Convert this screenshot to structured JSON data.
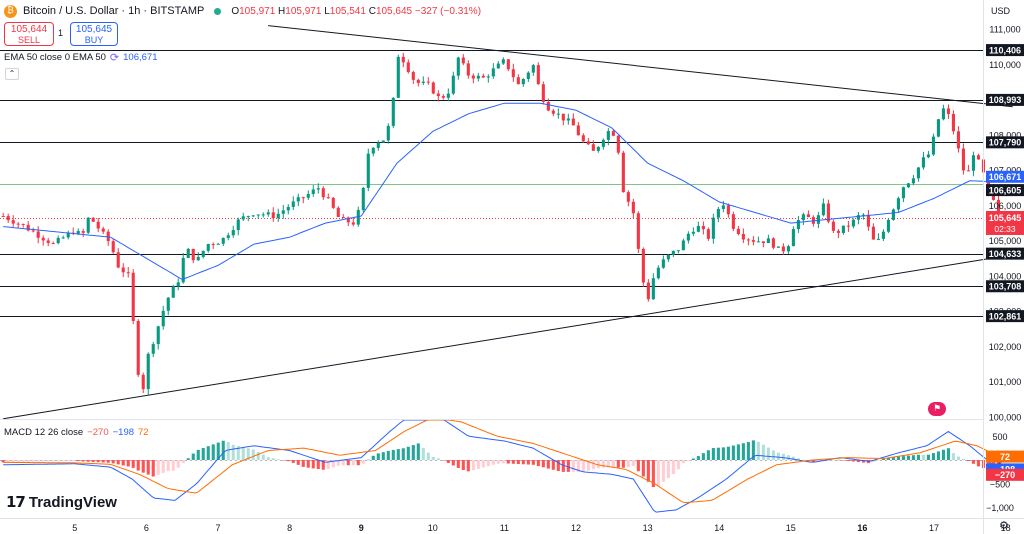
{
  "header": {
    "symbol_glyph": "₿",
    "title": "Bitcoin / U.S. Dollar · 1h · BITSTAMP",
    "ohlc": {
      "o": "105,971",
      "h": "105,971",
      "l": "105,541",
      "c": "105,645",
      "change": "−327 (−0.31%)"
    }
  },
  "trade": {
    "sell_price": "105,644",
    "sell_label": "SELL",
    "buy_price": "105,645",
    "buy_label": "BUY",
    "spread": "1"
  },
  "ema_legend": {
    "label": "EMA 50 close 0 EMA 50",
    "value": "106,671"
  },
  "collapse_icon": "⌃",
  "macd_legend": {
    "label": "MACD 12 26 close",
    "hist": "−270",
    "macd": "−198",
    "signal": "72"
  },
  "logo": {
    "mark": "17",
    "text": "TradingView"
  },
  "axis": {
    "currency": "USD"
  },
  "colors": {
    "up": "#089981",
    "down": "#f23645",
    "ema": "#2962ff",
    "macd": "#2962ff",
    "signal": "#ff6d00"
  },
  "chart_data": {
    "type": "candlestick",
    "price_ticks": [
      111000,
      110000,
      109000,
      108000,
      107000,
      106000,
      105000,
      104000,
      103000,
      102000,
      101000,
      100000
    ],
    "price_tick_labels": [
      "111,000",
      "110,000",
      "109,000",
      "108,000",
      "107,000",
      "106,000",
      "105,000",
      "104,000",
      "103,000",
      "102,000",
      "101,000",
      "100,000"
    ],
    "macd_ticks": [
      500,
      0,
      -500,
      -1000
    ],
    "macd_tick_labels": [
      "500",
      "0",
      "−500",
      "−1,000"
    ],
    "x_labels": [
      {
        "label": "5",
        "t": 0.5
      },
      {
        "label": "6",
        "t": 1.5
      },
      {
        "label": "7",
        "t": 2.5
      },
      {
        "label": "8",
        "t": 3.5
      },
      {
        "label": "9",
        "t": 4.5,
        "bold": true
      },
      {
        "label": "10",
        "t": 5.5
      },
      {
        "label": "11",
        "t": 6.5
      },
      {
        "label": "12",
        "t": 7.5
      },
      {
        "label": "13",
        "t": 8.5
      },
      {
        "label": "14",
        "t": 9.5
      },
      {
        "label": "15",
        "t": 10.5
      },
      {
        "label": "16",
        "t": 11.5,
        "bold": true
      },
      {
        "label": "17",
        "t": 12.5
      },
      {
        "label": "18",
        "t": 13.5
      }
    ],
    "levels": [
      {
        "value": 110406,
        "label": "110,406",
        "color": "#131722"
      },
      {
        "value": 108993,
        "label": "108,993",
        "color": "#131722"
      },
      {
        "value": 107790,
        "label": "107,790",
        "color": "#131722"
      },
      {
        "value": 106605,
        "label": "106,605",
        "color": "#131722",
        "line_color": "#81c784"
      },
      {
        "value": 104633,
        "label": "104,633",
        "color": "#131722"
      },
      {
        "value": 103708,
        "label": "103,708",
        "color": "#131722"
      },
      {
        "value": 102861,
        "label": "102,861",
        "color": "#131722"
      }
    ],
    "ema_tag": {
      "value": 106671,
      "label": "106,671",
      "color": "#2962ff"
    },
    "last_price": {
      "value": 105645,
      "label": "105,645",
      "countdown": "02:33",
      "color": "#f23645"
    },
    "macd_tags": [
      {
        "value": 72,
        "label": "72",
        "color": "#ff6d00"
      },
      {
        "value": -198,
        "label": "−198",
        "color": "#2962ff"
      },
      {
        "value": -270,
        "label": "−270",
        "color": "#f23645"
      }
    ],
    "trendlines": [
      {
        "t1": 3.2,
        "p1": 111100,
        "t2": 13.6,
        "p2": 108800
      },
      {
        "t1": -0.5,
        "p1": 99950,
        "t2": 13.6,
        "p2": 104600
      }
    ],
    "anchors": [
      [
        -0.5,
        105700
      ],
      [
        -0.2,
        105400
      ],
      [
        0.2,
        104900
      ],
      [
        0.5,
        105300
      ],
      [
        0.6,
        105100
      ],
      [
        0.7,
        105700
      ],
      [
        1.0,
        104900
      ],
      [
        1.1,
        104300
      ],
      [
        1.25,
        104000
      ],
      [
        1.35,
        102000
      ],
      [
        1.43,
        100400
      ],
      [
        1.5,
        101600
      ],
      [
        1.62,
        102300
      ],
      [
        1.78,
        103300
      ],
      [
        1.95,
        103900
      ],
      [
        2.05,
        104800
      ],
      [
        2.2,
        104400
      ],
      [
        2.35,
        104900
      ],
      [
        2.55,
        105000
      ],
      [
        2.8,
        105600
      ],
      [
        3.0,
        105800
      ],
      [
        3.3,
        105700
      ],
      [
        3.5,
        106000
      ],
      [
        3.75,
        106300
      ],
      [
        3.9,
        106500
      ],
      [
        4.05,
        106100
      ],
      [
        4.2,
        105600
      ],
      [
        4.4,
        105500
      ],
      [
        4.5,
        106000
      ],
      [
        4.6,
        107500
      ],
      [
        4.7,
        107800
      ],
      [
        4.85,
        107900
      ],
      [
        4.95,
        109000
      ],
      [
        5.0,
        110300
      ],
      [
        5.1,
        110100
      ],
      [
        5.25,
        109500
      ],
      [
        5.45,
        109400
      ],
      [
        5.6,
        109000
      ],
      [
        5.75,
        109300
      ],
      [
        5.85,
        110200
      ],
      [
        6.0,
        109700
      ],
      [
        6.2,
        109600
      ],
      [
        6.5,
        110100
      ],
      [
        6.7,
        109400
      ],
      [
        6.9,
        110000
      ],
      [
        7.0,
        109200
      ],
      [
        7.1,
        108800
      ],
      [
        7.3,
        108500
      ],
      [
        7.45,
        108300
      ],
      [
        7.6,
        107800
      ],
      [
        7.75,
        107500
      ],
      [
        7.9,
        108000
      ],
      [
        8.0,
        108200
      ],
      [
        8.1,
        107500
      ],
      [
        8.15,
        106500
      ],
      [
        8.3,
        105800
      ],
      [
        8.42,
        104000
      ],
      [
        8.5,
        103300
      ],
      [
        8.6,
        104100
      ],
      [
        8.75,
        104500
      ],
      [
        8.95,
        104800
      ],
      [
        9.1,
        105300
      ],
      [
        9.2,
        105400
      ],
      [
        9.35,
        105100
      ],
      [
        9.45,
        105800
      ],
      [
        9.55,
        106100
      ],
      [
        9.7,
        105400
      ],
      [
        9.85,
        105100
      ],
      [
        10.0,
        105000
      ],
      [
        10.2,
        105000
      ],
      [
        10.35,
        104700
      ],
      [
        10.45,
        104800
      ],
      [
        10.55,
        105500
      ],
      [
        10.7,
        105700
      ],
      [
        10.85,
        105500
      ],
      [
        10.95,
        106000
      ],
      [
        11.1,
        105200
      ],
      [
        11.2,
        105300
      ],
      [
        11.35,
        105500
      ],
      [
        11.5,
        105800
      ],
      [
        11.65,
        105000
      ],
      [
        11.75,
        105000
      ],
      [
        11.85,
        105600
      ],
      [
        11.95,
        106000
      ],
      [
        12.05,
        106500
      ],
      [
        12.2,
        106800
      ],
      [
        12.35,
        107300
      ],
      [
        12.45,
        107500
      ],
      [
        12.55,
        108400
      ],
      [
        12.65,
        108800
      ],
      [
        12.75,
        108300
      ],
      [
        12.85,
        107500
      ],
      [
        12.95,
        106700
      ],
      [
        13.05,
        107500
      ],
      [
        13.15,
        107100
      ],
      [
        13.3,
        106300
      ],
      [
        13.4,
        105645
      ]
    ],
    "candle_count": 200,
    "ema_series": [
      [
        -0.5,
        105400
      ],
      [
        0.5,
        105200
      ],
      [
        1.0,
        105100
      ],
      [
        1.5,
        104500
      ],
      [
        2.0,
        103900
      ],
      [
        2.5,
        104300
      ],
      [
        3.0,
        104900
      ],
      [
        3.5,
        105100
      ],
      [
        4.0,
        105500
      ],
      [
        4.5,
        105700
      ],
      [
        5.0,
        107200
      ],
      [
        5.5,
        108100
      ],
      [
        6.0,
        108600
      ],
      [
        6.5,
        108900
      ],
      [
        7.0,
        108900
      ],
      [
        7.5,
        108700
      ],
      [
        8.0,
        108200
      ],
      [
        8.5,
        107200
      ],
      [
        9.0,
        106700
      ],
      [
        9.5,
        106100
      ],
      [
        10.0,
        105800
      ],
      [
        10.5,
        105500
      ],
      [
        11.0,
        105600
      ],
      [
        11.5,
        105700
      ],
      [
        12.0,
        105800
      ],
      [
        12.5,
        106200
      ],
      [
        13.0,
        106700
      ],
      [
        13.4,
        106671
      ]
    ],
    "macd_series": [
      [
        -0.5,
        -100
      ],
      [
        0.5,
        -80
      ],
      [
        1.0,
        -150
      ],
      [
        1.3,
        -400
      ],
      [
        1.6,
        -800
      ],
      [
        1.9,
        -850
      ],
      [
        2.2,
        -500
      ],
      [
        2.6,
        200
      ],
      [
        3.0,
        300
      ],
      [
        3.5,
        200
      ],
      [
        4.0,
        -50
      ],
      [
        4.5,
        50
      ],
      [
        4.9,
        600
      ],
      [
        5.3,
        1100
      ],
      [
        5.6,
        900
      ],
      [
        6.0,
        500
      ],
      [
        6.5,
        400
      ],
      [
        6.9,
        250
      ],
      [
        7.3,
        -100
      ],
      [
        7.6,
        -250
      ],
      [
        8.0,
        -300
      ],
      [
        8.3,
        -400
      ],
      [
        8.6,
        -1100
      ],
      [
        8.9,
        -1050
      ],
      [
        9.2,
        -800
      ],
      [
        9.6,
        -400
      ],
      [
        10.0,
        100
      ],
      [
        10.4,
        50
      ],
      [
        10.8,
        -50
      ],
      [
        11.2,
        50
      ],
      [
        11.6,
        -30
      ],
      [
        12.0,
        150
      ],
      [
        12.4,
        300
      ],
      [
        12.7,
        600
      ],
      [
        13.0,
        300
      ],
      [
        13.4,
        -198
      ]
    ],
    "signal_series": [
      [
        -0.5,
        -50
      ],
      [
        0.5,
        -60
      ],
      [
        1.0,
        -90
      ],
      [
        1.4,
        -300
      ],
      [
        1.8,
        -600
      ],
      [
        2.2,
        -700
      ],
      [
        2.7,
        -100
      ],
      [
        3.2,
        200
      ],
      [
        3.7,
        250
      ],
      [
        4.2,
        100
      ],
      [
        4.7,
        200
      ],
      [
        5.1,
        600
      ],
      [
        5.5,
        900
      ],
      [
        5.9,
        800
      ],
      [
        6.4,
        500
      ],
      [
        6.9,
        350
      ],
      [
        7.4,
        100
      ],
      [
        7.8,
        -100
      ],
      [
        8.2,
        -200
      ],
      [
        8.6,
        -500
      ],
      [
        9.0,
        -900
      ],
      [
        9.4,
        -850
      ],
      [
        9.9,
        -400
      ],
      [
        10.3,
        -100
      ],
      [
        10.8,
        0
      ],
      [
        11.3,
        50
      ],
      [
        11.8,
        30
      ],
      [
        12.3,
        150
      ],
      [
        12.8,
        400
      ],
      [
        13.1,
        300
      ],
      [
        13.4,
        72
      ]
    ]
  }
}
